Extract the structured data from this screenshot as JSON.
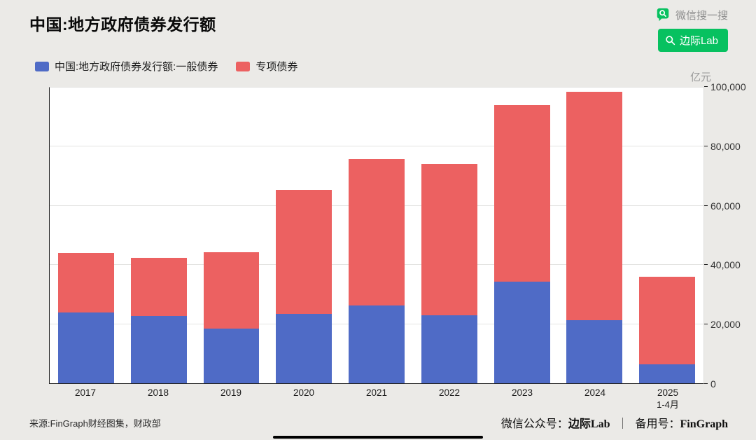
{
  "header": {
    "title": "中国:地方政府债券发行额",
    "wechat_search_label": "微信搜一搜",
    "brand_button_label": "边际Lab"
  },
  "colors": {
    "general_bond_blue": "#4f6bc6",
    "special_bond_red": "#ec6161",
    "wechat_green": "#07c160",
    "background": "#ebeae7"
  },
  "legend": [
    {
      "label": "中国:地方政府债券发行额:一般债券",
      "color": "#4f6bc6"
    },
    {
      "label": "专项债券",
      "color": "#ec6161"
    }
  ],
  "chart_data": {
    "type": "bar",
    "stacked": true,
    "title": "中国:地方政府债券发行额",
    "unit_label": "亿元",
    "categories": [
      "2017",
      "2018",
      "2019",
      "2020",
      "2021",
      "2022",
      "2023",
      "2024",
      "2025"
    ],
    "category_sublabels": [
      "",
      "",
      "",
      "",
      "",
      "",
      "",
      "",
      "1-4月"
    ],
    "series": [
      {
        "name": "中国:地方政府债券发行额:一般债券",
        "color": "#4f6bc6",
        "values": [
          24000,
          22800,
          18500,
          23500,
          26400,
          23100,
          34400,
          21400,
          6400
        ]
      },
      {
        "name": "专项债券",
        "color": "#ec6161",
        "values": [
          20200,
          19700,
          25700,
          41800,
          49400,
          51000,
          59700,
          77200,
          29700
        ]
      }
    ],
    "totals": [
      44200,
      42500,
      44200,
      65300,
      75800,
      74100,
      94100,
      98600,
      36100
    ],
    "ylim": [
      0,
      100000
    ],
    "ytick_values": [
      0,
      20000,
      40000,
      60000,
      80000,
      100000
    ],
    "ytick_labels": [
      "0",
      "20,000",
      "40,000",
      "60,000",
      "80,000",
      "100,000"
    ],
    "grid": true,
    "legend_position": "top-left",
    "y_axis_side": "right"
  },
  "footer": {
    "source": "来源:FinGraph财经图集，财政部",
    "public_label": "微信公众号：",
    "public_name": "边际Lab",
    "separator": "｜",
    "backup_label": "备用号：",
    "backup_name": "FinGraph"
  }
}
